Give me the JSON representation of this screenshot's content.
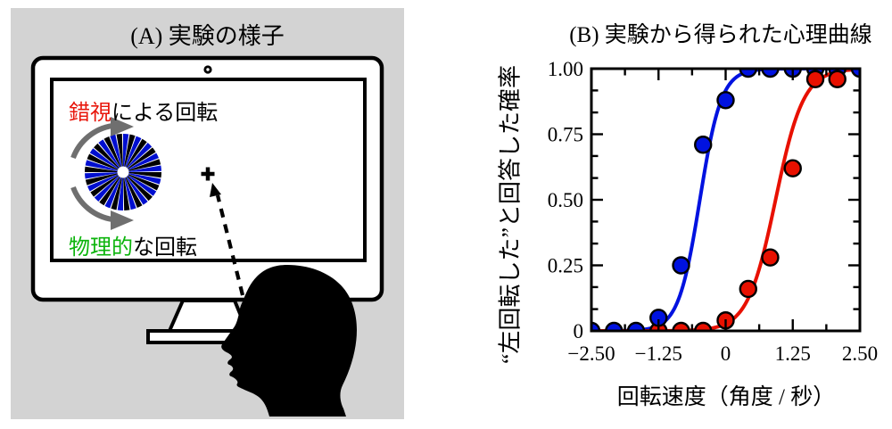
{
  "panel_a": {
    "title": "(A) 実験の様子",
    "label_illusory": {
      "highlight": "錯視",
      "rest": "による回転"
    },
    "label_physical": {
      "highlight": "物理的",
      "rest": "な回転"
    },
    "colors": {
      "background": "#d3d3d3",
      "illusory_text": "#e8170c",
      "physical_text": "#0cb40c",
      "wheel_blue": "#000fd0",
      "wheel_black": "#000000",
      "arrow_gray": "#6f6f6f"
    },
    "wheel": {
      "segments": 36
    }
  },
  "panel_b": {
    "title": "(B) 実験から得られた心理曲線"
  },
  "chart_data": {
    "type": "scatter",
    "title": "(B) 実験から得られた心理曲線",
    "xlabel": "回転速度（角度 / 秒）",
    "ylabel": "“左回転した”と回答した確率",
    "xlim": [
      -2.5,
      2.5
    ],
    "ylim": [
      0,
      1.0
    ],
    "grid": false,
    "legend": "none",
    "x_ticks": {
      "values": [
        -2.5,
        -1.25,
        0,
        1.25,
        2.5
      ],
      "labels": [
        "−2.50",
        "−1.25",
        "0",
        "1.25",
        "2.50"
      ],
      "minor": [
        -1.875,
        -0.625,
        0.625,
        1.875
      ]
    },
    "y_ticks": {
      "values": [
        0,
        0.25,
        0.5,
        0.75,
        1.0
      ],
      "labels": [
        "0",
        "0.25",
        "0.50",
        "0.75",
        "1.00"
      ],
      "minor": [
        0.083,
        0.167,
        0.333,
        0.417,
        0.583,
        0.667,
        0.833,
        0.917
      ]
    },
    "series": [
      {
        "name": "illusory_rotation_blue",
        "color": "#0012e0",
        "points": [
          [
            -2.5,
            0
          ],
          [
            -2.08,
            0
          ],
          [
            -1.67,
            0
          ],
          [
            -1.25,
            0.05
          ],
          [
            -0.83,
            0.25
          ],
          [
            -0.42,
            0.71
          ],
          [
            0,
            0.88
          ],
          [
            0.42,
            1
          ],
          [
            0.83,
            1
          ],
          [
            1.25,
            1
          ],
          [
            1.67,
            1
          ],
          [
            2.08,
            1
          ],
          [
            2.5,
            1
          ]
        ],
        "fit": {
          "type": "logistic",
          "midpoint": -0.48,
          "scale": 0.2
        }
      },
      {
        "name": "physical_rotation_red",
        "color": "#e81000",
        "points": [
          [
            -1.25,
            0
          ],
          [
            -0.83,
            0
          ],
          [
            -0.42,
            0
          ],
          [
            0,
            0.04
          ],
          [
            0.42,
            0.16
          ],
          [
            0.83,
            0.28
          ],
          [
            1.25,
            0.62
          ],
          [
            1.67,
            0.96
          ],
          [
            2.08,
            0.96
          ]
        ],
        "fit": {
          "type": "logistic",
          "midpoint": 0.93,
          "scale": 0.26
        }
      }
    ]
  }
}
